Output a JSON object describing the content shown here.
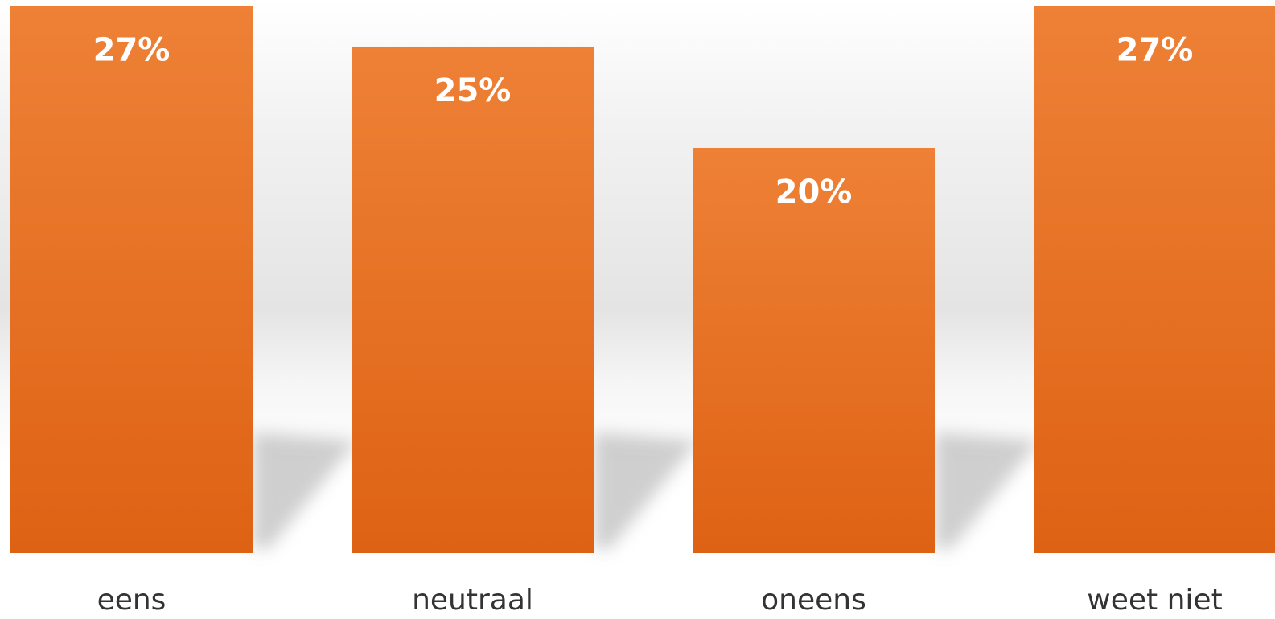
{
  "chart_data": {
    "type": "bar",
    "categories": [
      "eens",
      "neutraal",
      "oneens",
      "weet niet"
    ],
    "values": [
      27,
      25,
      20,
      27
    ],
    "data_labels": [
      "27%",
      "25%",
      "20%",
      "27%"
    ],
    "title": "",
    "xlabel": "",
    "ylabel": "",
    "ylim": [
      0,
      27.3
    ],
    "grid": false,
    "legend": "none",
    "colors": {
      "bar_top": "#EE8136",
      "bar_bottom": "#DE6214",
      "label_text": "#FFFFFF",
      "category_text": "#333333"
    }
  }
}
